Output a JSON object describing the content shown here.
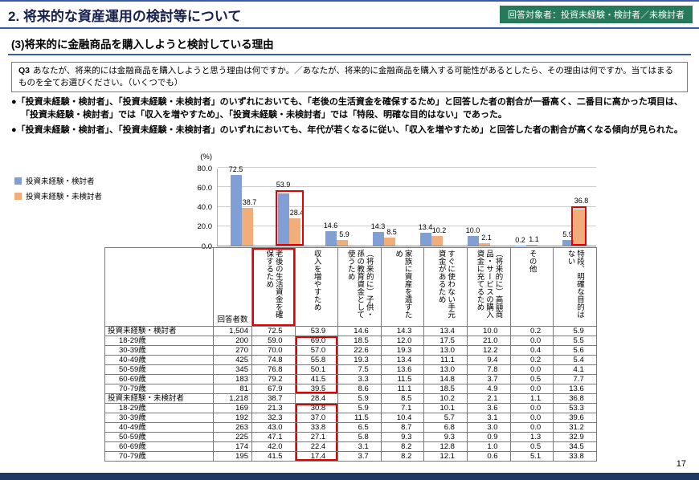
{
  "header": {
    "title": "2. 将来的な資産運用の検討等について",
    "audience_badge": "回答対象者：投資未経験・検討者／未検討者"
  },
  "section": {
    "title": "(3)将来的に金融商品を購入しようと検討している理由"
  },
  "question": {
    "label": "Q3",
    "text": "あなたが、将来的には金融商品を購入しようと思う理由は何ですか。／あなたが、将来的に金融商品を購入する可能性があるとしたら、その理由は何ですか。当てはまるものを全てお選びください。（いくつでも）"
  },
  "findings": [
    "「投資未経験・検討者」、「投資未経験・未検討者」のいずれにおいても、「老後の生活資金を確保するため」と回答した者の割合が一番高く、二番目に高かった項目は、「投資未経験・検討者」では「収入を増やすため」、「投資未経験・未検討者」では「特段、明確な目的はない」であった。",
    "「投資未経験・検討者」、「投資未経験・未検討者」のいずれにおいても、年代が若くなるに従い、「収入を増やすため」と回答した者の割合が高くなる傾向が見られた。"
  ],
  "colors": {
    "accent_blue": "#3a5ba9",
    "title_navy": "#17204d",
    "badge_green": "#26795b",
    "navy": "#1f3864",
    "red": "#e60000",
    "series_blue": "#7f9fd5",
    "series_orange": "#f2ae7a"
  },
  "chart_data": {
    "type": "bar",
    "unit_label": "(%)",
    "ylim": [
      0,
      80
    ],
    "yticks": [
      80,
      60,
      40,
      20,
      0
    ],
    "grid": true,
    "legend_position": "left",
    "categories": [
      "老後の生活資金を確保するため",
      "収入を増やすため",
      "（将来的に）子供・孫の教育資金として使うため",
      "家族に資産を遺すため",
      "すぐに使わない手元資金があるため",
      "（将来的に）高額商品・サービスの購入資金に充てるため",
      "その他",
      "特段、明確な目的はない"
    ],
    "series": [
      {
        "name": "投資未経験・検討者",
        "color": "#7f9fd5",
        "values": [
          72.5,
          53.9,
          14.6,
          14.3,
          13.4,
          10.0,
          0.2,
          5.9
        ]
      },
      {
        "name": "投資未経験・未検討者",
        "color": "#f2ae7a",
        "values": [
          38.7,
          28.4,
          5.9,
          8.5,
          10.2,
          2.1,
          1.1,
          36.8
        ]
      }
    ]
  },
  "annotations": {
    "chart_category_box": 1,
    "chart_single_bar_box": {
      "series": 1,
      "category": 7
    },
    "table_header_box_column": 0,
    "table_value_box": {
      "column": 1,
      "row_ranges": [
        [
          1,
          6
        ],
        [
          8,
          13
        ]
      ]
    }
  },
  "table": {
    "respondent_header": "回答者数",
    "columns": [
      "老後の生活資金を確保するため",
      "収入を増やすため",
      "（将来的に）子供・孫の教育資金として使うため",
      "家族に資産を遺すため",
      "すぐに使わない手元資金があるため",
      "（将来的に）高額商品・サービスの購入資金に充てるため",
      "その他",
      "特段、明確な目的はない"
    ],
    "rows": [
      {
        "label": "投資未経験・検討者",
        "indent": false,
        "n": "1,504",
        "values": [
          "72.5",
          "53.9",
          "14.6",
          "14.3",
          "13.4",
          "10.0",
          "0.2",
          "5.9"
        ]
      },
      {
        "label": "18-29歳",
        "indent": true,
        "n": "200",
        "values": [
          "59.0",
          "69.0",
          "18.5",
          "12.0",
          "17.5",
          "21.0",
          "0.0",
          "5.5"
        ]
      },
      {
        "label": "30-39歳",
        "indent": true,
        "n": "270",
        "values": [
          "70.0",
          "57.0",
          "22.6",
          "19.3",
          "13.0",
          "12.2",
          "0.4",
          "5.6"
        ]
      },
      {
        "label": "40-49歳",
        "indent": true,
        "n": "425",
        "values": [
          "74.8",
          "55.8",
          "19.3",
          "13.4",
          "11.1",
          "9.4",
          "0.2",
          "5.4"
        ]
      },
      {
        "label": "50-59歳",
        "indent": true,
        "n": "345",
        "values": [
          "76.8",
          "50.1",
          "7.5",
          "13.6",
          "13.0",
          "7.8",
          "0.0",
          "4.1"
        ]
      },
      {
        "label": "60-69歳",
        "indent": true,
        "n": "183",
        "values": [
          "79.2",
          "41.5",
          "3.3",
          "11.5",
          "14.8",
          "3.7",
          "0.5",
          "7.7"
        ]
      },
      {
        "label": "70-79歳",
        "indent": true,
        "n": "81",
        "values": [
          "67.9",
          "39.5",
          "8.6",
          "11.1",
          "18.5",
          "4.9",
          "0.0",
          "13.6"
        ]
      },
      {
        "label": "投資未経験・未検討者",
        "indent": false,
        "n": "1,218",
        "values": [
          "38.7",
          "28.4",
          "5.9",
          "8.5",
          "10.2",
          "2.1",
          "1.1",
          "36.8"
        ]
      },
      {
        "label": "18-29歳",
        "indent": true,
        "n": "169",
        "values": [
          "21.3",
          "30.8",
          "5.9",
          "7.1",
          "10.1",
          "3.6",
          "0.0",
          "53.3"
        ]
      },
      {
        "label": "30-39歳",
        "indent": true,
        "n": "192",
        "values": [
          "32.3",
          "37.0",
          "11.5",
          "10.4",
          "5.7",
          "3.1",
          "0.0",
          "39.6"
        ]
      },
      {
        "label": "40-49歳",
        "indent": true,
        "n": "263",
        "values": [
          "43.0",
          "33.8",
          "6.5",
          "8.7",
          "6.8",
          "3.0",
          "0.0",
          "31.2"
        ]
      },
      {
        "label": "50-59歳",
        "indent": true,
        "n": "225",
        "values": [
          "47.1",
          "27.1",
          "5.8",
          "9.3",
          "9.3",
          "0.9",
          "1.3",
          "32.9"
        ]
      },
      {
        "label": "60-69歳",
        "indent": true,
        "n": "174",
        "values": [
          "42.0",
          "22.4",
          "3.1",
          "8.2",
          "12.8",
          "1.0",
          "0.5",
          "34.5"
        ]
      },
      {
        "label": "70-79歳",
        "indent": true,
        "n": "195",
        "values": [
          "41.5",
          "17.4",
          "3.7",
          "8.2",
          "12.1",
          "0.6",
          "5.1",
          "33.8"
        ]
      }
    ]
  },
  "page_number": "17"
}
